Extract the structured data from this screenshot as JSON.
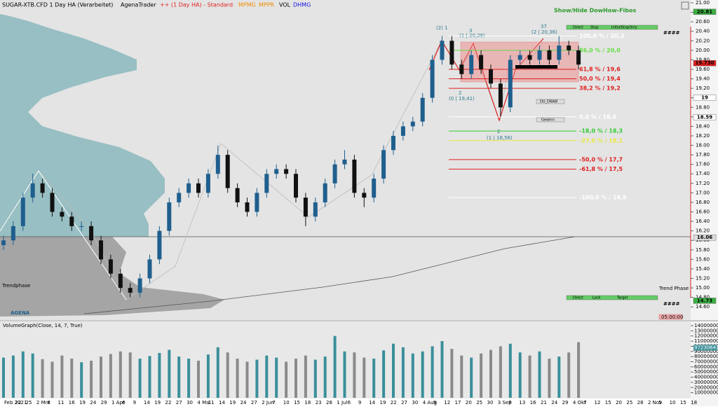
{
  "header": {
    "symbol": "SUGAR-XTB.CFD 1 Day HA (Verarbeitet)",
    "app": "AgenaTrader",
    "template": "++ (1 Day HA) - Standard",
    "ind1": "MPMG",
    "ind2": "MPPR",
    "ind3": "VOL",
    "ind4": "DHMG"
  },
  "toggle": "Show/Hide DowHow-Fibos",
  "hash": "####",
  "hash2": "####",
  "buttons_top": [
    "Direct",
    "Stop",
    "InitialStopOnly"
  ],
  "buttons_bottom": [
    "Direct",
    "Lock",
    "Target"
  ],
  "draw_button": "DU_DRAW",
  "gain_button": "Gewinn",
  "trend_phase": "Trend Phase",
  "trendphase_left": "Trendphase",
  "timer": "05:00:00",
  "logo": "AGENA",
  "volume_title": "VolumeGraph(Close, 14, 7, True)",
  "waves": [
    "(2) 1",
    "3",
    "(1 | 20,28)",
    "37",
    "(2 | 20,36)",
    "2",
    "(0 | 19,41)",
    "2",
    "(1 | 18,56)"
  ],
  "dates": [
    "Feb 2021",
    "22",
    "25",
    "2 Mrz",
    "8",
    "11",
    "16",
    "19",
    "24",
    "29",
    "1 Apr",
    "6",
    "9",
    "14",
    "19",
    "22",
    "27",
    "30",
    "4 Mai",
    "11",
    "14",
    "19",
    "24",
    "27",
    "2 Jun",
    "7",
    "10",
    "15",
    "18",
    "23",
    "28",
    "1 Jul",
    "6",
    "9",
    "14",
    "19",
    "22",
    "27",
    "30",
    "4 Aug",
    "9",
    "12",
    "17",
    "20",
    "25",
    "30",
    "3 Sep",
    "8",
    "13",
    "16",
    "21",
    "24",
    "29",
    "4 Okt",
    "7",
    "12",
    "15",
    "20",
    "25",
    "28",
    "2 Nov",
    "5",
    "10",
    "15",
    "18"
  ],
  "chart_data": [
    {
      "type": "candlestick",
      "up_color": "#1f5f8e",
      "down_color": "#111111",
      "ylim": [
        14.5,
        21.0
      ],
      "yticks": [
        {
          "value": 14.6,
          "label": "14.60"
        },
        {
          "value": 14.8,
          "label": "14.80"
        },
        {
          "value": 15.0,
          "label": "15.00"
        },
        {
          "value": 15.2,
          "label": "15.20"
        },
        {
          "value": 15.4,
          "label": "15.40"
        },
        {
          "value": 15.6,
          "label": "15.60"
        },
        {
          "value": 15.8,
          "label": "15.80"
        },
        {
          "value": 16.0,
          "label": "16.00"
        },
        {
          "value": 16.2,
          "label": "16.20"
        },
        {
          "value": 16.4,
          "label": "16.40"
        },
        {
          "value": 16.6,
          "label": "16.60"
        },
        {
          "value": 16.8,
          "label": "16.80"
        },
        {
          "value": 17.0,
          "label": "17.00"
        },
        {
          "value": 17.2,
          "label": "17.20"
        },
        {
          "value": 17.4,
          "label": "17.40"
        },
        {
          "value": 17.6,
          "label": "17.60"
        },
        {
          "value": 17.8,
          "label": "17.80"
        },
        {
          "value": 18.0,
          "label": "18.00"
        },
        {
          "value": 18.2,
          "label": "18.20"
        },
        {
          "value": 18.4,
          "label": "18.40"
        },
        {
          "value": 18.6,
          "label": "18.60"
        },
        {
          "value": 18.8,
          "label": "18.80"
        },
        {
          "value": 19.0,
          "label": "19.00"
        },
        {
          "value": 19.2,
          "label": "19.20"
        },
        {
          "value": 19.4,
          "label": "19.40"
        },
        {
          "value": 19.6,
          "label": "19.60"
        },
        {
          "value": 19.8,
          "label": "19.80"
        },
        {
          "value": 20.0,
          "label": "20.00"
        },
        {
          "value": 20.2,
          "label": "20.20"
        },
        {
          "value": 20.4,
          "label": "20.40"
        },
        {
          "value": 20.6,
          "label": "20.60"
        },
        {
          "value": 20.8,
          "label": "20.80"
        },
        {
          "value": 21.0,
          "label": "21.00"
        }
      ],
      "candles": [
        [
          15.9,
          16.1,
          15.8,
          16.0
        ],
        [
          16.0,
          16.4,
          15.9,
          16.3
        ],
        [
          16.3,
          17.0,
          16.2,
          16.9
        ],
        [
          16.9,
          17.4,
          16.8,
          17.2
        ],
        [
          17.2,
          17.3,
          16.9,
          17.0
        ],
        [
          17.0,
          17.1,
          16.5,
          16.6
        ],
        [
          16.6,
          16.7,
          16.4,
          16.5
        ],
        [
          16.5,
          16.6,
          16.2,
          16.3
        ],
        [
          16.3,
          16.4,
          16.2,
          16.3
        ],
        [
          16.3,
          16.4,
          15.9,
          16.0
        ],
        [
          16.0,
          16.1,
          15.5,
          15.6
        ],
        [
          15.6,
          15.7,
          15.2,
          15.3
        ],
        [
          15.3,
          15.4,
          14.9,
          15.0
        ],
        [
          15.0,
          15.1,
          14.8,
          14.9
        ],
        [
          14.9,
          15.3,
          14.8,
          15.2
        ],
        [
          15.2,
          15.7,
          15.1,
          15.6
        ],
        [
          15.6,
          16.3,
          15.5,
          16.2
        ],
        [
          16.2,
          16.9,
          16.1,
          16.8
        ],
        [
          16.8,
          17.1,
          16.7,
          17.0
        ],
        [
          17.0,
          17.3,
          16.9,
          17.2
        ],
        [
          17.2,
          17.3,
          16.9,
          17.0
        ],
        [
          17.0,
          17.5,
          16.9,
          17.4
        ],
        [
          17.4,
          18.0,
          17.3,
          17.8
        ],
        [
          17.8,
          17.9,
          17.0,
          17.1
        ],
        [
          17.1,
          17.2,
          16.7,
          16.8
        ],
        [
          16.8,
          16.9,
          16.5,
          16.6
        ],
        [
          16.6,
          17.1,
          16.5,
          17.0
        ],
        [
          17.0,
          17.5,
          16.9,
          17.4
        ],
        [
          17.4,
          17.6,
          17.3,
          17.5
        ],
        [
          17.5,
          17.6,
          17.3,
          17.4
        ],
        [
          17.4,
          17.5,
          16.8,
          16.9
        ],
        [
          16.9,
          17.0,
          16.3,
          16.5
        ],
        [
          16.5,
          16.9,
          16.4,
          16.8
        ],
        [
          16.8,
          17.3,
          16.7,
          17.2
        ],
        [
          17.2,
          17.7,
          17.1,
          17.6
        ],
        [
          17.6,
          17.9,
          17.5,
          17.7
        ],
        [
          17.7,
          17.8,
          16.9,
          17.0
        ],
        [
          17.0,
          17.1,
          16.7,
          16.9
        ],
        [
          16.9,
          17.4,
          16.8,
          17.3
        ],
        [
          17.3,
          18.0,
          17.2,
          17.9
        ],
        [
          17.9,
          18.3,
          17.8,
          18.2
        ],
        [
          18.2,
          18.5,
          18.1,
          18.4
        ],
        [
          18.4,
          18.6,
          18.3,
          18.5
        ],
        [
          18.5,
          19.1,
          18.4,
          19.0
        ],
        [
          19.0,
          19.9,
          18.9,
          19.8
        ],
        [
          19.8,
          20.3,
          19.7,
          20.2
        ],
        [
          20.2,
          20.3,
          19.6,
          19.7
        ],
        [
          19.7,
          19.8,
          19.4,
          19.5
        ],
        [
          19.5,
          20.0,
          19.4,
          19.9
        ],
        [
          19.9,
          20.0,
          19.5,
          19.6
        ],
        [
          19.6,
          19.7,
          19.2,
          19.3
        ],
        [
          19.3,
          19.4,
          18.6,
          18.8
        ],
        [
          18.8,
          19.9,
          18.7,
          19.8
        ],
        [
          19.8,
          20.0,
          19.7,
          19.9
        ],
        [
          19.9,
          20.0,
          19.7,
          19.8
        ],
        [
          19.8,
          20.1,
          19.7,
          20.0
        ],
        [
          20.0,
          20.1,
          19.7,
          19.8
        ],
        [
          19.8,
          20.3,
          19.7,
          20.1
        ],
        [
          20.1,
          20.2,
          19.9,
          20.0
        ],
        [
          20.0,
          20.1,
          19.6,
          19.7
        ]
      ],
      "fibs": [
        {
          "label": "100,0 % / 20,3",
          "price": 20.3,
          "color": "#ffffff"
        },
        {
          "label": "86,0 % / 20,0",
          "price": 20.0,
          "color": "#66dd44"
        },
        {
          "label": "61,8 % / 19,6",
          "price": 19.6,
          "color": "#e02020"
        },
        {
          "label": "50,0 % / 19,4",
          "price": 19.4,
          "color": "#e02020"
        },
        {
          "label": "38,2 % / 19,2",
          "price": 19.2,
          "color": "#e02020"
        },
        {
          "label": "0,0 % / 18,6",
          "price": 18.6,
          "color": "#ffffff"
        },
        {
          "label": "-18,0 % / 18,3",
          "price": 18.3,
          "color": "#33cc33"
        },
        {
          "label": "-27,0 % / 18,1",
          "price": 18.1,
          "color": "#e8e840"
        },
        {
          "label": "-50,0 % / 17,7",
          "price": 17.7,
          "color": "#e02020"
        },
        {
          "label": "-61,8 % / 17,5",
          "price": 17.5,
          "color": "#e02020"
        },
        {
          "label": "-100,0 % / 16,9",
          "price": 16.9,
          "color": "#ffffff"
        }
      ],
      "price_markers": [
        {
          "value": 20.81,
          "label": "20.81",
          "color": "#3cb043"
        },
        {
          "value": 19.73,
          "label": "19.730",
          "color": "#e02020"
        },
        {
          "value": 19.0,
          "label": "19",
          "color": "#ffffff"
        },
        {
          "value": 18.59,
          "label": "18.59",
          "color": "#ffffff"
        },
        {
          "value": 16.06,
          "label": "16.06",
          "color": "#dddddd"
        },
        {
          "value": 14.73,
          "label": "14.73",
          "color": "#3cb043"
        }
      ]
    },
    {
      "type": "bar",
      "up_color": "#3a8f9a",
      "down_color": "#8a8a8a",
      "ylim": [
        0,
        1400000000
      ],
      "yticks": [
        100000000,
        200000000,
        300000000,
        400000000,
        500000000,
        600000000,
        700000000,
        800000000,
        900000000,
        1000000000,
        1100000000,
        1200000000,
        1300000000,
        1400000000
      ],
      "values": [
        780000000,
        820000000,
        900000000,
        860000000,
        750000000,
        700000000,
        820000000,
        760000000,
        690000000,
        720000000,
        800000000,
        850000000,
        900000000,
        880000000,
        760000000,
        810000000,
        870000000,
        930000000,
        800000000,
        760000000,
        720000000,
        840000000,
        980000000,
        880000000,
        760000000,
        700000000,
        740000000,
        820000000,
        780000000,
        700000000,
        760000000,
        820000000,
        740000000,
        800000000,
        1200000000,
        900000000,
        880000000,
        780000000,
        760000000,
        920000000,
        1050000000,
        980000000,
        860000000,
        900000000,
        1000000000,
        1100000000,
        950000000,
        820000000,
        780000000,
        860000000,
        930000000,
        1000000000,
        1050000000,
        880000000,
        820000000,
        900000000,
        760000000,
        800000000,
        880000000,
        1080000000
      ],
      "last_value": 972306435
    }
  ]
}
